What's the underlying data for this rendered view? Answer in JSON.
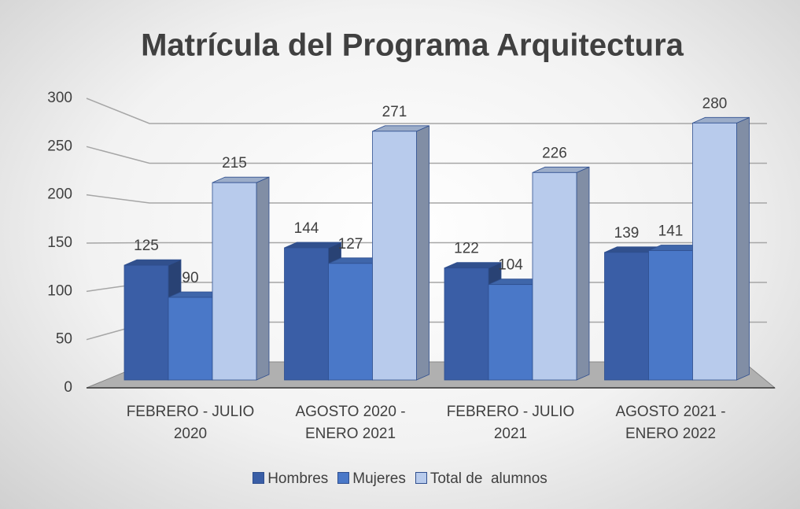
{
  "chart_data": {
    "type": "bar3d",
    "title": "Matrícula del Programa Arquitectura",
    "categories": [
      "FEBRERO - JULIO 2020",
      "AGOSTO 2020 - ENERO 2021",
      "FEBRERO - JULIO 2021",
      "AGOSTO 2021 - ENERO 2022"
    ],
    "series": [
      {
        "name": "Hombres",
        "color": "#3a5ea6",
        "values": [
          125,
          144,
          122,
          139
        ]
      },
      {
        "name": "Mujeres",
        "color": "#4a78c8",
        "values": [
          90,
          127,
          104,
          141
        ]
      },
      {
        "name": "Total de  alumnos",
        "color": "#b8cbec",
        "values": [
          215,
          271,
          226,
          280
        ]
      }
    ],
    "ylim": [
      0,
      300
    ],
    "yticks": [
      0,
      50,
      100,
      150,
      200,
      250,
      300
    ],
    "grid": true,
    "legend": "bottom"
  }
}
